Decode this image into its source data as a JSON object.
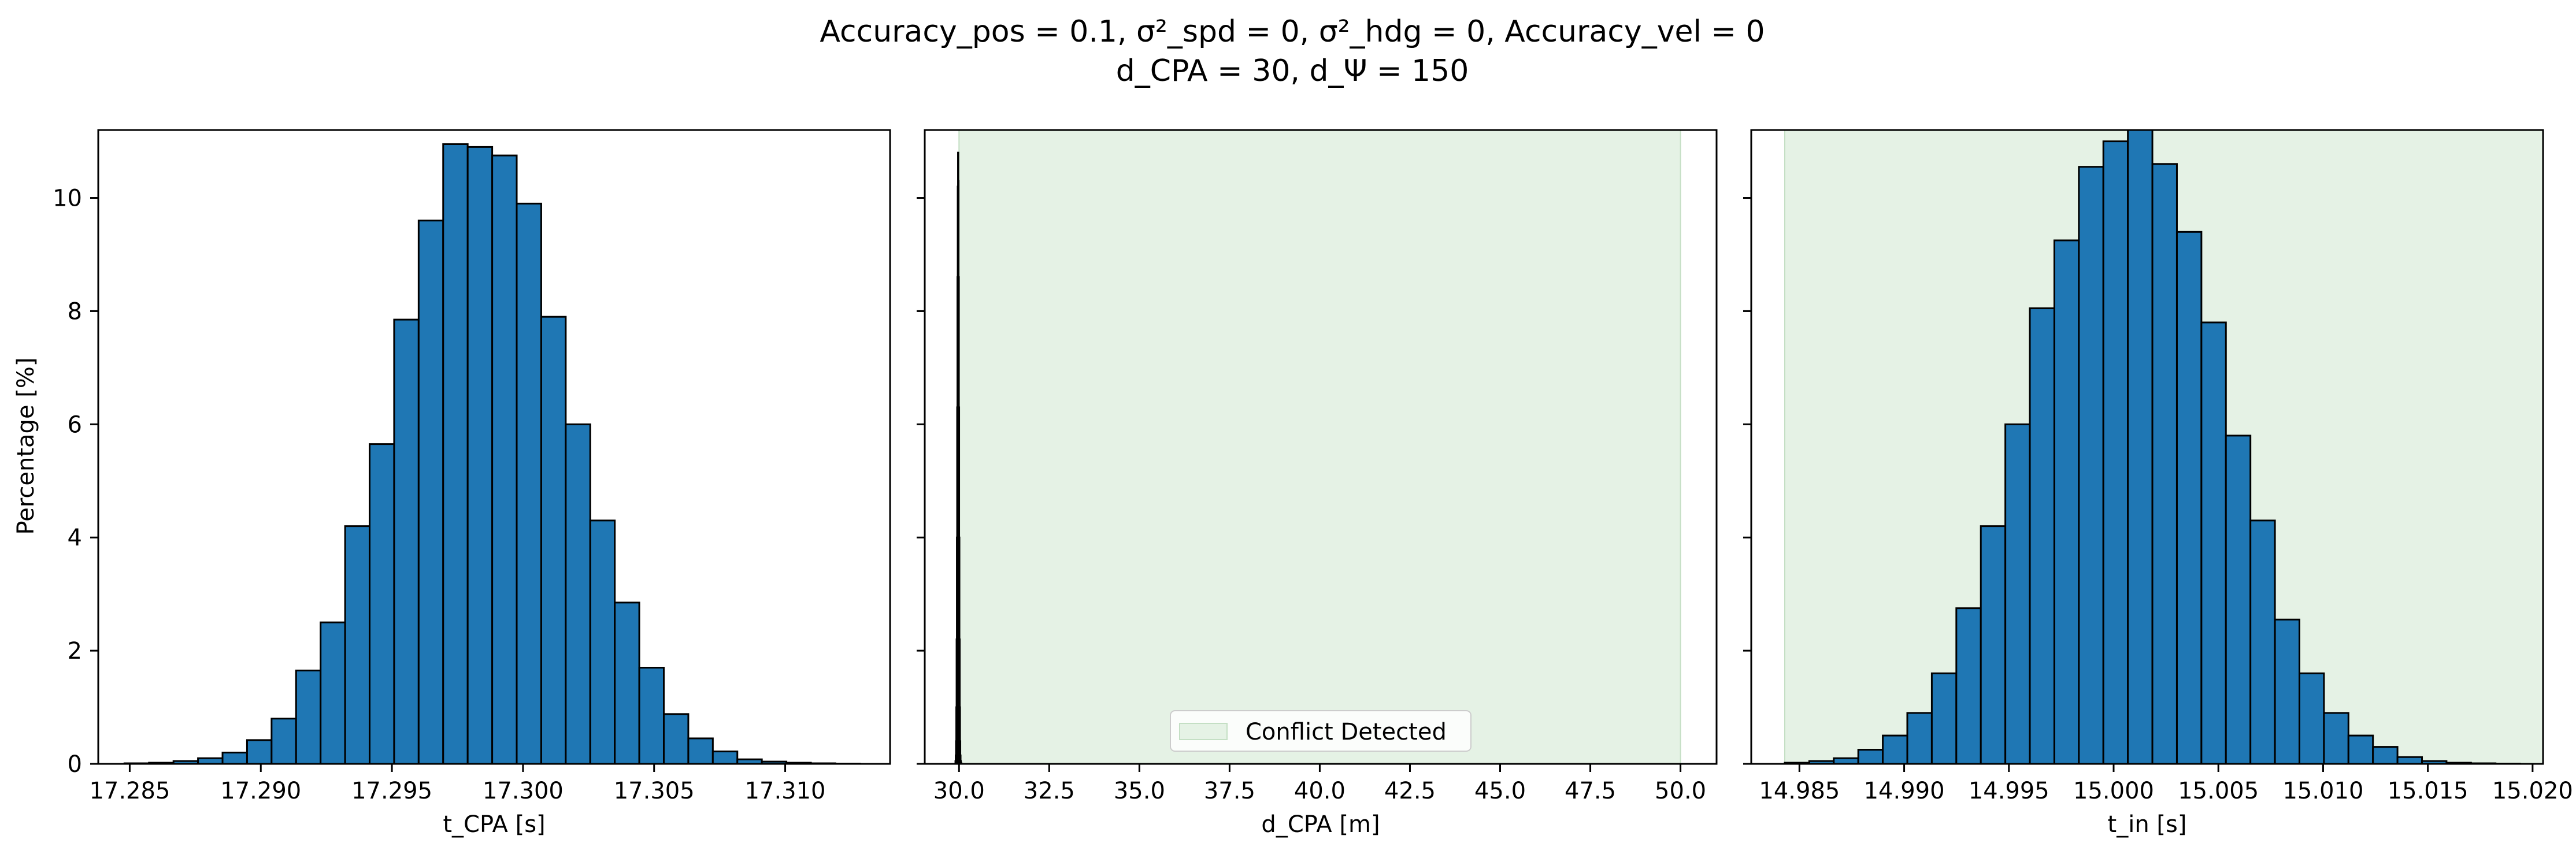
{
  "figure": {
    "title_line1": "Accuracy_pos = 0.1, σ²_spd = 0, σ²_hdg = 0, Accuracy_vel = 0",
    "title_line2": "d_CPA = 30, d_Ψ = 150",
    "shared_ylabel": "Percentage [%]",
    "colors": {
      "bar": "#1f77b4",
      "edge": "#000000",
      "conflict_fill": "#e5f2e5"
    }
  },
  "chart_data": [
    {
      "type": "bar",
      "name": "tcpa-histogram",
      "xlabel": "t_CPA [s]",
      "ylabel": "Percentage [%]",
      "xlim": [
        17.2838,
        17.314
      ],
      "ylim": [
        0,
        11.2
      ],
      "xticks": [
        17.285,
        17.29,
        17.295,
        17.3,
        17.305,
        17.31
      ],
      "xtick_labels": [
        "17.285",
        "17.290",
        "17.295",
        "17.300",
        "17.305",
        "17.310"
      ],
      "yticks": [
        0,
        2,
        4,
        6,
        8,
        10
      ],
      "ytick_labels": [
        "0",
        "2",
        "4",
        "6",
        "8",
        "10"
      ],
      "bin_start": 17.2848,
      "bin_width": 0.000935,
      "values": [
        0.01,
        0.02,
        0.05,
        0.1,
        0.2,
        0.42,
        0.8,
        1.65,
        2.5,
        4.2,
        5.65,
        7.85,
        9.6,
        10.95,
        10.9,
        10.75,
        9.9,
        7.9,
        6.0,
        4.3,
        2.85,
        1.7,
        0.88,
        0.45,
        0.22,
        0.08,
        0.04,
        0.02,
        0.01,
        0.005
      ]
    },
    {
      "type": "bar",
      "name": "dcpa-histogram",
      "xlabel": "d_CPA [m]",
      "xlim": [
        29.05,
        51.0
      ],
      "ylim": [
        0,
        11.2
      ],
      "xticks": [
        30.0,
        32.5,
        35.0,
        37.5,
        40.0,
        42.5,
        45.0,
        47.5,
        50.0
      ],
      "xtick_labels": [
        "30.0",
        "32.5",
        "35.0",
        "37.5",
        "40.0",
        "42.5",
        "45.0",
        "47.5",
        "50.0"
      ],
      "conflict_region": [
        30.0,
        50.0
      ],
      "legend": {
        "label": "Conflict Detected",
        "position": "lower center"
      },
      "bin_start": 29.9,
      "bin_width": 0.008,
      "values": [
        0.05,
        0.15,
        0.4,
        1.0,
        2.2,
        4.0,
        6.3,
        8.6,
        10.2,
        10.8,
        10.3,
        8.6,
        6.3,
        4.0,
        2.2,
        1.0,
        0.4,
        0.15,
        0.05,
        0.02,
        0.01
      ]
    },
    {
      "type": "bar",
      "name": "tin-histogram",
      "xlabel": "t_in [s]",
      "xlim": [
        14.9827,
        15.0205
      ],
      "ylim": [
        0,
        11.2
      ],
      "xticks": [
        14.985,
        14.99,
        14.995,
        15.0,
        15.005,
        15.01,
        15.015,
        15.02
      ],
      "xtick_labels": [
        "14.985",
        "14.990",
        "14.995",
        "15.000",
        "15.005",
        "15.010",
        "15.015",
        "15.020"
      ],
      "conflict_region": [
        14.9843,
        15.0205
      ],
      "bin_start": 14.9843,
      "bin_width": 0.00117,
      "values": [
        0.02,
        0.05,
        0.1,
        0.25,
        0.5,
        0.9,
        1.6,
        2.75,
        4.2,
        6.0,
        8.05,
        9.25,
        10.55,
        11.0,
        11.2,
        10.6,
        9.4,
        7.8,
        5.8,
        4.3,
        2.55,
        1.6,
        0.9,
        0.5,
        0.3,
        0.12,
        0.05,
        0.02,
        0.01,
        0.005
      ]
    }
  ]
}
